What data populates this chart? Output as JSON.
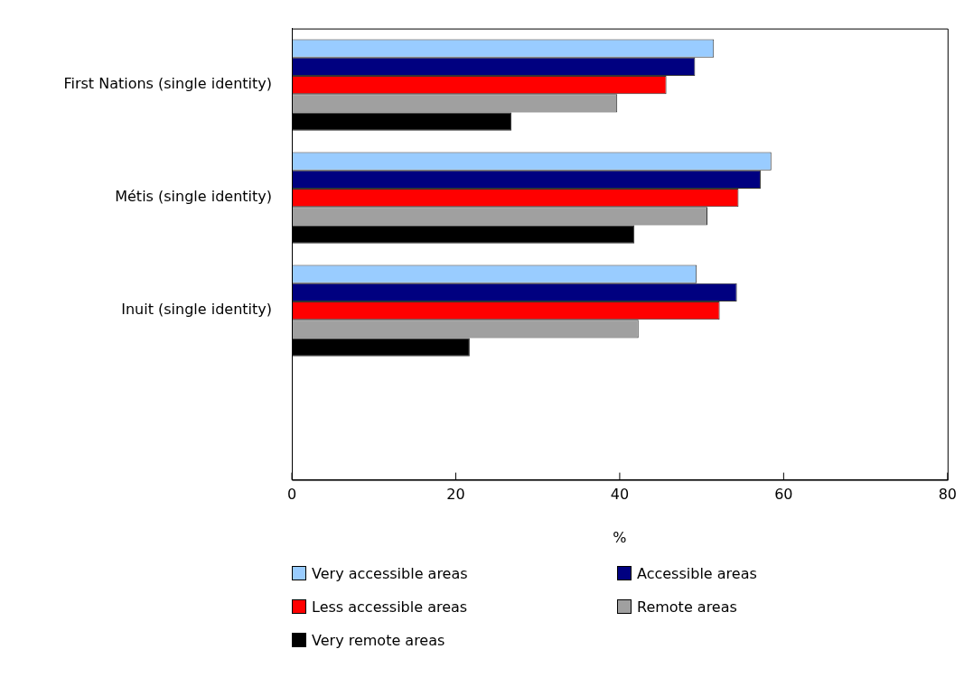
{
  "chart_data": {
    "type": "bar",
    "orientation": "horizontal",
    "xlabel": "%",
    "categories": [
      "First Nations (single identity)",
      "Métis (single identity)",
      "Inuit (single identity)",
      null
    ],
    "series": [
      {
        "name": "Very accessible areas",
        "color": "#99ccff",
        "values": [
          51.5,
          58.5,
          49.4,
          null
        ]
      },
      {
        "name": "Accessible areas",
        "color": "#000080",
        "values": [
          49.2,
          57.2,
          54.3,
          null
        ]
      },
      {
        "name": "Less accessible areas",
        "color": "#ff0000",
        "values": [
          45.7,
          54.5,
          52.2,
          null
        ]
      },
      {
        "name": "Remote areas",
        "color": "#a0a0a0",
        "values": [
          39.7,
          50.7,
          42.3,
          null
        ]
      },
      {
        "name": "Very remote areas",
        "color": "#000000",
        "values": [
          26.8,
          41.8,
          21.7,
          null
        ]
      }
    ],
    "xlim": [
      0,
      80
    ],
    "xticks": [
      0,
      20,
      40,
      60,
      80
    ],
    "grid": false,
    "legend": "bottom"
  }
}
